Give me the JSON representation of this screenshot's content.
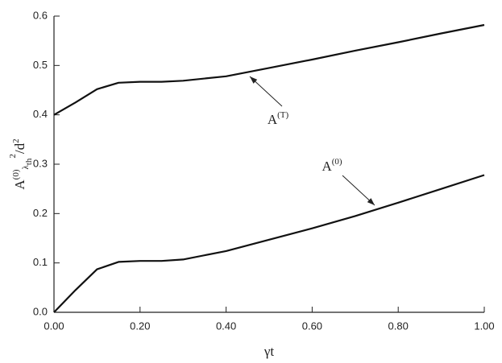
{
  "chart_data": {
    "type": "line",
    "xlabel": "γt",
    "ylabel": [
      "A",
      "(0)",
      "λ",
      "th",
      "2",
      "/d",
      "2"
    ],
    "x": [
      0,
      0.05,
      0.1,
      0.15,
      0.2,
      0.25,
      0.3,
      0.4,
      0.5,
      0.6,
      0.7,
      0.8,
      0.9,
      1.0
    ],
    "series": [
      {
        "name": [
          "A",
          "(T)"
        ],
        "color": "#111111",
        "values": [
          0.4,
          0.425,
          0.452,
          0.465,
          0.467,
          0.467,
          0.469,
          0.478,
          0.495,
          0.512,
          0.53,
          0.547,
          0.565,
          0.582
        ]
      },
      {
        "name": [
          "A",
          "(0)"
        ],
        "color": "#111111",
        "values": [
          0,
          0.045,
          0.087,
          0.102,
          0.104,
          0.104,
          0.107,
          0.124,
          0.147,
          0.17,
          0.195,
          0.222,
          0.25,
          0.278
        ]
      }
    ],
    "xlim": [
      0,
      1
    ],
    "xticks": [
      {
        "value": 0,
        "label": "0.00"
      },
      {
        "value": 0.2,
        "label": "0.20"
      },
      {
        "value": 0.4,
        "label": "0.40"
      },
      {
        "value": 0.6,
        "label": "0.60"
      },
      {
        "value": 0.8,
        "label": "0.80"
      },
      {
        "value": 1,
        "label": "1.00"
      }
    ],
    "ylim": [
      0,
      0.6
    ],
    "yticks": [
      {
        "value": 0,
        "label": "0.0"
      },
      0.1,
      0.2,
      0.3,
      0.4,
      0.5,
      0.6
    ],
    "grid": false
  }
}
